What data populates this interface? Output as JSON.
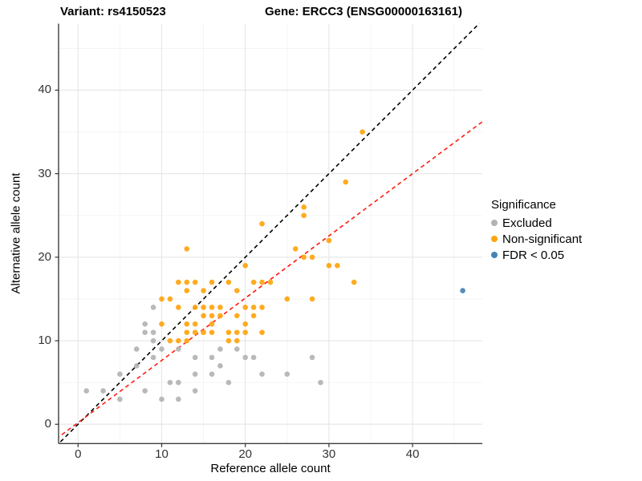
{
  "header": {
    "title_left": "Variant: rs4150523",
    "title_right": "Gene: ERCC3 (ENSG00000163161)"
  },
  "legend": {
    "title": "Significance",
    "items": [
      {
        "label": "Excluded",
        "color": "#B3B3B3"
      },
      {
        "label": "Non-significant",
        "color": "#FFA40E"
      },
      {
        "label": "FDR < 0.05",
        "color": "#4682B4"
      }
    ]
  },
  "chart_data": {
    "type": "scatter",
    "title": "Variant: rs4150523 — Gene: ERCC3 (ENSG00000163161)",
    "xlabel": "Reference allele count",
    "ylabel": "Alternative allele count",
    "xlim": [
      -2.33,
      48.34
    ],
    "ylim": [
      -2.31,
      47.96
    ],
    "x_ticks": [
      0,
      10,
      20,
      30,
      40
    ],
    "y_ticks": [
      0,
      10,
      20,
      30,
      40
    ],
    "x_minor": [
      5,
      15,
      25,
      35,
      45
    ],
    "y_minor": [
      5,
      15,
      25,
      35,
      45
    ],
    "grid": "on",
    "legend_position": "right",
    "colors": {
      "major_grid": "#E5E5E5",
      "minor_grid": "#F2F2F2",
      "axis_line": "#3d3d3d",
      "tick_mark": "#333333"
    },
    "series": [
      {
        "name": "Excluded",
        "color": "#B3B3B3",
        "points": [
          [
            1,
            4
          ],
          [
            3,
            4
          ],
          [
            5,
            3
          ],
          [
            5,
            6
          ],
          [
            7,
            7
          ],
          [
            7,
            9
          ],
          [
            8,
            4
          ],
          [
            8,
            11
          ],
          [
            8,
            12
          ],
          [
            9,
            8
          ],
          [
            9,
            10
          ],
          [
            9,
            11
          ],
          [
            9,
            14
          ],
          [
            10,
            3
          ],
          [
            10,
            9
          ],
          [
            11,
            5
          ],
          [
            12,
            3
          ],
          [
            12,
            5
          ],
          [
            12,
            9
          ],
          [
            14,
            4
          ],
          [
            14,
            6
          ],
          [
            14,
            8
          ],
          [
            16,
            6
          ],
          [
            16,
            8
          ],
          [
            17,
            7
          ],
          [
            17,
            9
          ],
          [
            18,
            5
          ],
          [
            19,
            9
          ],
          [
            20,
            8
          ],
          [
            21,
            8
          ],
          [
            22,
            6
          ],
          [
            25,
            6
          ],
          [
            28,
            8
          ],
          [
            29,
            5
          ]
        ]
      },
      {
        "name": "Non-significant",
        "color": "#FFA40E",
        "points": [
          [
            11,
            10
          ],
          [
            12,
            10
          ],
          [
            13,
            10
          ],
          [
            18,
            10
          ],
          [
            19,
            10
          ],
          [
            13,
            11
          ],
          [
            14,
            11
          ],
          [
            15,
            11
          ],
          [
            16,
            11
          ],
          [
            18,
            11
          ],
          [
            19,
            11
          ],
          [
            20,
            11
          ],
          [
            22,
            11
          ],
          [
            10,
            12
          ],
          [
            13,
            12
          ],
          [
            14,
            12
          ],
          [
            16,
            12
          ],
          [
            20,
            12
          ],
          [
            15,
            13
          ],
          [
            16,
            13
          ],
          [
            17,
            13
          ],
          [
            19,
            13
          ],
          [
            21,
            13
          ],
          [
            12,
            14
          ],
          [
            14,
            14
          ],
          [
            15,
            14
          ],
          [
            16,
            14
          ],
          [
            17,
            14
          ],
          [
            20,
            14
          ],
          [
            21,
            14
          ],
          [
            22,
            14
          ],
          [
            10,
            15
          ],
          [
            11,
            15
          ],
          [
            25,
            15
          ],
          [
            28,
            15
          ],
          [
            13,
            16
          ],
          [
            15,
            16
          ],
          [
            19,
            16
          ],
          [
            12,
            17
          ],
          [
            13,
            17
          ],
          [
            14,
            17
          ],
          [
            16,
            17
          ],
          [
            18,
            17
          ],
          [
            21,
            17
          ],
          [
            22,
            17
          ],
          [
            23,
            17
          ],
          [
            33,
            17
          ],
          [
            20,
            19
          ],
          [
            30,
            19
          ],
          [
            31,
            19
          ],
          [
            27,
            20
          ],
          [
            28,
            20
          ],
          [
            13,
            21
          ],
          [
            26,
            21
          ],
          [
            30,
            22
          ],
          [
            22,
            24
          ],
          [
            27,
            25
          ],
          [
            27,
            26
          ],
          [
            32,
            29
          ],
          [
            34,
            35
          ]
        ]
      },
      {
        "name": "FDR < 0.05",
        "color": "#4682B4",
        "points": [
          [
            46,
            16
          ]
        ]
      }
    ],
    "lines": [
      {
        "name": "identity-line",
        "slope": 1,
        "intercept": 0,
        "color": "#000000",
        "dash": "5,4"
      },
      {
        "name": "fit-line",
        "slope": 0.745,
        "intercept": 0.2,
        "color": "#FF1A0E",
        "dash": "5,4"
      }
    ]
  }
}
